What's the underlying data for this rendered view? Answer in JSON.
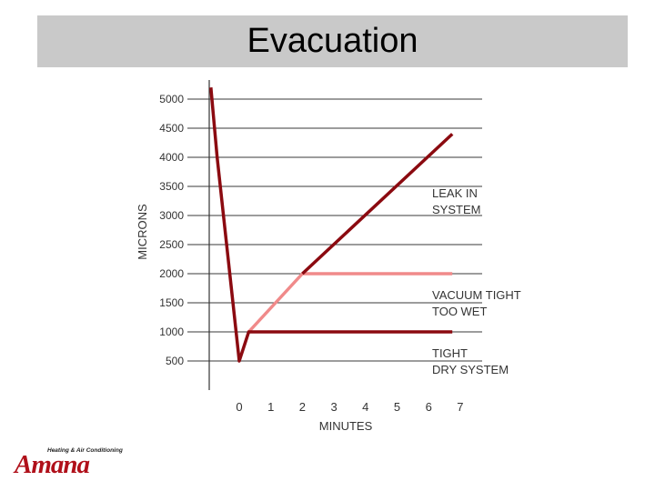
{
  "slide": {
    "title": "Evacuation"
  },
  "logo": {
    "tagline": "Heating & Air Conditioning",
    "wordmark": "Amana",
    "color": "#b0101a"
  },
  "chart_data": {
    "type": "line",
    "xlabel": "MINUTES",
    "ylabel": "MICRONS",
    "xlim": [
      -1,
      7
    ],
    "ylim": [
      0,
      5000
    ],
    "x_ticks": [
      "0",
      "1",
      "2",
      "3",
      "4",
      "5",
      "6",
      "7"
    ],
    "y_ticks": [
      "5000",
      "4500",
      "4000",
      "3500",
      "3000",
      "2500",
      "2000",
      "1500",
      "1000",
      "500"
    ],
    "grid": true,
    "series": [
      {
        "name": "LEAK IN SYSTEM",
        "color": "#8b0a10",
        "points": [
          [
            2,
            2000
          ],
          [
            6.75,
            4400
          ]
        ]
      },
      {
        "name": "VACUUM TIGHT TOO WET",
        "color": "#f08a8a",
        "points": [
          [
            0.3,
            1000
          ],
          [
            2,
            2000
          ],
          [
            6.75,
            2000
          ]
        ]
      },
      {
        "name": "TIGHT DRY SYSTEM",
        "color": "#8b0a10",
        "points": [
          [
            -0.9,
            5200
          ],
          [
            -0.7,
            4000
          ],
          [
            0,
            500
          ],
          [
            0.3,
            1000
          ],
          [
            6.75,
            1000
          ]
        ]
      }
    ],
    "annotations": [
      {
        "lines": [
          "LEAK IN",
          "SYSTEM"
        ],
        "y": 3250
      },
      {
        "lines": [
          "VACUUM TIGHT",
          "TOO WET"
        ],
        "y": 1500
      },
      {
        "lines": [
          "TIGHT",
          "DRY SYSTEM"
        ],
        "y": 500
      }
    ]
  }
}
